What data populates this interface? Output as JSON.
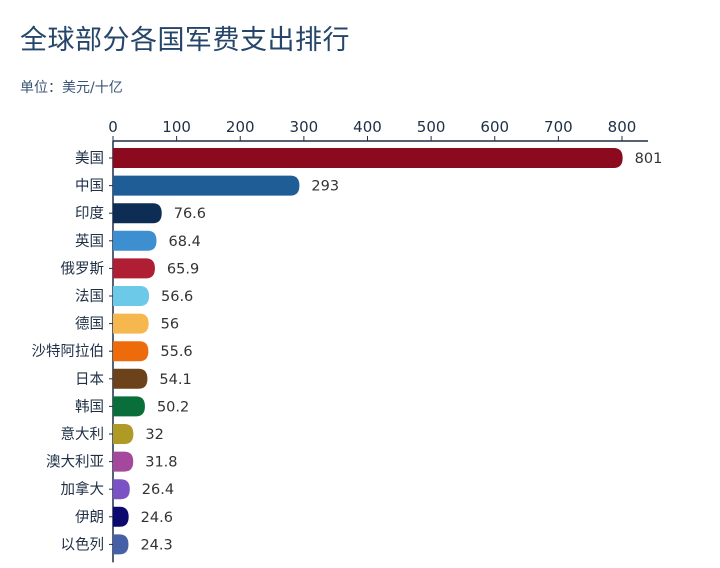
{
  "chart_data": {
    "type": "bar",
    "orientation": "horizontal",
    "title": "全球部分各国军费支出排行",
    "subtitle": "单位：美元/十亿",
    "xlim": [
      0,
      800
    ],
    "ticks": [
      0,
      100,
      200,
      300,
      400,
      500,
      600,
      700,
      800
    ],
    "grid": false,
    "categories": [
      "美国",
      "中国",
      "印度",
      "英国",
      "俄罗斯",
      "法国",
      "德国",
      "沙特阿拉伯",
      "日本",
      "韩国",
      "意大利",
      "澳大利亚",
      "加拿大",
      "伊朗",
      "以色列"
    ],
    "values": [
      801,
      293,
      76.6,
      68.4,
      65.9,
      56.6,
      56,
      55.6,
      54.1,
      50.2,
      32,
      31.8,
      26.4,
      24.6,
      24.3
    ],
    "value_labels": [
      "801",
      "293",
      "76.6",
      "68.4",
      "65.9",
      "56.6",
      "56",
      "55.6",
      "54.1",
      "50.2",
      "32",
      "31.8",
      "26.4",
      "24.6",
      "24.3"
    ],
    "colors": [
      "#8b0a1e",
      "#1f5d97",
      "#0e2d55",
      "#3d8fcf",
      "#b01e34",
      "#6ccae8",
      "#f7b74f",
      "#ee6b0c",
      "#6b4219",
      "#0a6e3a",
      "#b09a26",
      "#a3489c",
      "#7a52c4",
      "#0c0a6e",
      "#4660a8"
    ]
  }
}
